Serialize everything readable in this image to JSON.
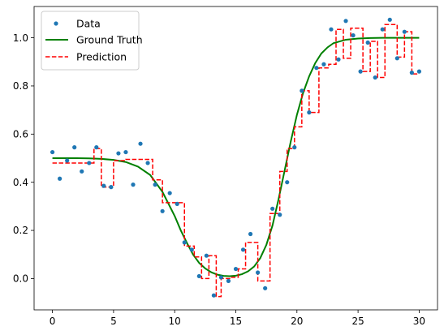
{
  "chart_data": {
    "type": "line",
    "title": "",
    "xlabel": "",
    "ylabel": "",
    "xlim": [
      -1.5,
      31.5
    ],
    "ylim": [
      -0.13,
      1.13
    ],
    "x_ticks": [
      0,
      5,
      10,
      15,
      20,
      25,
      30
    ],
    "y_ticks": [
      0.0,
      0.2,
      0.4,
      0.6,
      0.8,
      1.0
    ],
    "x_tick_labels": [
      "0",
      "5",
      "10",
      "15",
      "20",
      "25",
      "30"
    ],
    "y_tick_labels": [
      "0.0",
      "0.2",
      "0.4",
      "0.6",
      "0.8",
      "1.0"
    ],
    "grid": false,
    "legend": {
      "placement": "top-left",
      "entries": [
        "Data",
        "Ground Truth",
        "Prediction"
      ]
    },
    "series": [
      {
        "name": "Data",
        "kind": "scatter",
        "color": "#1f77b4",
        "x": [
          0.0,
          0.6,
          1.2,
          1.8,
          2.4,
          3.0,
          3.6,
          4.2,
          4.8,
          5.4,
          6.0,
          6.6,
          7.2,
          7.8,
          8.4,
          9.0,
          9.6,
          10.2,
          10.8,
          11.4,
          12.0,
          12.6,
          13.2,
          13.8,
          14.4,
          15.0,
          15.6,
          16.2,
          16.8,
          17.4,
          18.0,
          18.6,
          19.2,
          19.8,
          20.4,
          21.0,
          21.6,
          22.2,
          22.8,
          23.4,
          24.0,
          24.6,
          25.2,
          25.8,
          26.4,
          27.0,
          27.6,
          28.2,
          28.8,
          29.4,
          30.0
        ],
        "y": [
          0.525,
          0.415,
          0.49,
          0.545,
          0.445,
          0.48,
          0.545,
          0.385,
          0.38,
          0.52,
          0.525,
          0.39,
          0.56,
          0.48,
          0.39,
          0.28,
          0.355,
          0.31,
          0.15,
          0.12,
          0.01,
          0.095,
          -0.07,
          0.005,
          -0.01,
          0.04,
          0.12,
          0.185,
          0.025,
          -0.04,
          0.29,
          0.265,
          0.4,
          0.545,
          0.78,
          0.69,
          0.875,
          0.89,
          1.035,
          0.91,
          1.07,
          1.01,
          0.86,
          0.98,
          0.835,
          1.035,
          1.075,
          0.915,
          1.025,
          0.855,
          0.86
        ]
      },
      {
        "name": "Ground Truth",
        "kind": "line",
        "color": "#008000",
        "x": [
          0,
          1,
          2,
          3,
          4,
          5,
          6,
          7,
          8,
          9,
          10,
          10.5,
          11,
          11.5,
          12,
          12.5,
          13,
          13.5,
          14,
          14.5,
          15,
          15.5,
          16,
          16.5,
          17,
          17.5,
          18,
          18.5,
          19,
          19.5,
          20,
          20.5,
          21,
          21.5,
          22,
          22.5,
          23,
          24,
          25,
          26,
          27,
          28,
          29,
          30
        ],
        "y": [
          0.5,
          0.5,
          0.5,
          0.499,
          0.497,
          0.493,
          0.484,
          0.465,
          0.43,
          0.36,
          0.26,
          0.2,
          0.148,
          0.1,
          0.065,
          0.042,
          0.026,
          0.016,
          0.011,
          0.01,
          0.012,
          0.018,
          0.03,
          0.05,
          0.085,
          0.14,
          0.22,
          0.33,
          0.45,
          0.57,
          0.68,
          0.77,
          0.84,
          0.895,
          0.935,
          0.96,
          0.978,
          0.992,
          0.997,
          0.999,
          1.0,
          1.0,
          1.0,
          1.0
        ]
      },
      {
        "name": "Prediction",
        "kind": "step",
        "color": "#ff0000",
        "x": [
          0,
          3.4,
          4.0,
          5.0,
          6.0,
          8.2,
          8.9,
          9.0,
          10.6,
          10.8,
          11.6,
          12.2,
          12.8,
          13.4,
          13.8,
          14.6,
          15.2,
          15.8,
          16.8,
          17.8,
          18.6,
          19.2,
          19.8,
          20.4,
          21.0,
          21.8,
          22.6,
          23.2,
          23.8,
          24.4,
          25.4,
          26.0,
          26.6,
          27.2,
          28.2,
          28.8,
          29.4,
          30.0
        ],
        "y": [
          0.48,
          0.54,
          0.38,
          0.49,
          0.495,
          0.41,
          0.41,
          0.315,
          0.315,
          0.135,
          0.09,
          0.0,
          0.095,
          -0.075,
          0.0,
          0.005,
          0.04,
          0.15,
          -0.01,
          0.27,
          0.445,
          0.54,
          0.63,
          0.78,
          0.69,
          0.875,
          0.89,
          1.035,
          0.915,
          1.04,
          0.86,
          0.985,
          0.835,
          1.055,
          0.92,
          1.025,
          0.85,
          0.85
        ]
      }
    ]
  }
}
